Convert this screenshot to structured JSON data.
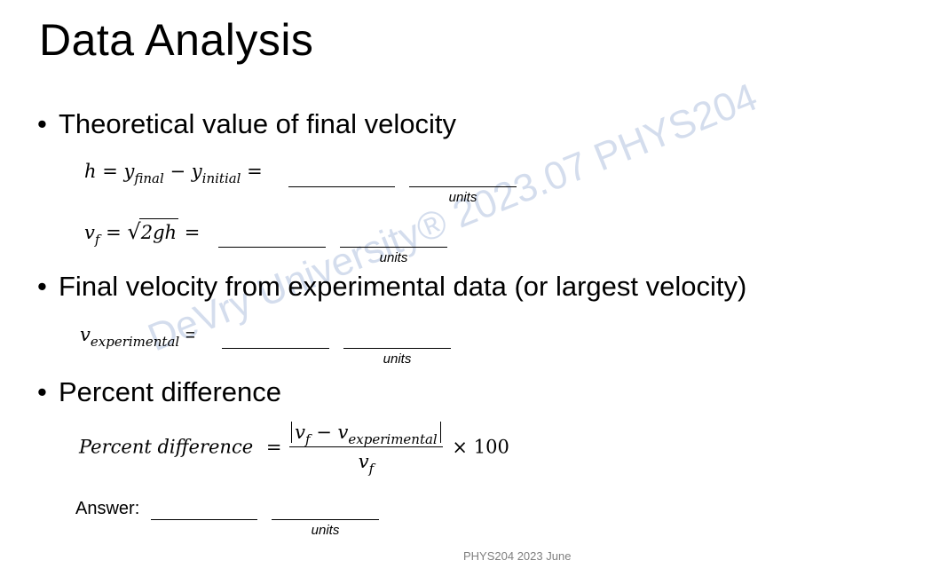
{
  "slide": {
    "title": "Data Analysis",
    "bullet_marker": "•",
    "bullets": [
      "Theoretical value of final velocity",
      "Final velocity from experimental data (or largest velocity)",
      "Percent difference"
    ],
    "units_label": "units",
    "answer_label": "Answer:",
    "watermark": "DeVry University® 2023.07 PHYS204",
    "footer": "PHYS204 2023 June"
  },
  "equations": {
    "height": {
      "lhs": "h",
      "eq": "=",
      "y": "y",
      "final_sub": "final",
      "minus": "−",
      "initial_sub": "initial",
      "eq2": "="
    },
    "velocity": {
      "v": "v",
      "f_sub": "f",
      "eq": "=",
      "radicand": "2gh",
      "radical": "√",
      "eq2": "="
    },
    "experimental": {
      "v": "v",
      "sub": "experimental",
      "eq": "="
    },
    "percent": {
      "lhs": "Percent difference",
      "eq": "=",
      "num_v": "v",
      "num_f": "f",
      "num_minus": "−",
      "num_v2": "v",
      "num_exp": "experimental",
      "den_v": "v",
      "den_f": "f",
      "times": "×",
      "hundred": "100"
    }
  }
}
